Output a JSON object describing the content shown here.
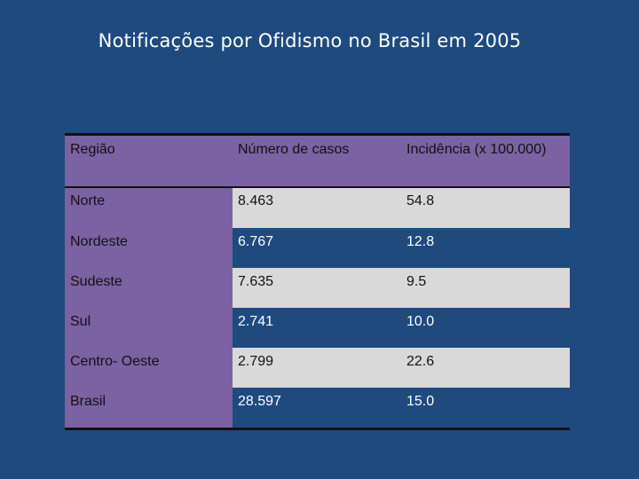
{
  "slide": {
    "title": "Notificações por Ofidismo no Brasil em 2005"
  },
  "table": {
    "headers": [
      "Região",
      "Número de casos",
      "Incidência (x 100.000)"
    ],
    "rows": [
      [
        "Norte",
        "8.463",
        "54.8"
      ],
      [
        "Nordeste",
        "6.767",
        "12.8"
      ],
      [
        "Sudeste",
        "7.635",
        "9.5"
      ],
      [
        "Sul",
        "2.741",
        "10.0"
      ],
      [
        "Centro- Oeste",
        "2.799",
        "22.6"
      ],
      [
        "Brasil",
        "28.597",
        "15.0"
      ]
    ]
  },
  "colors": {
    "background": "#1f4a7e",
    "header": "#7b62a3",
    "row_light": "#d9d9d9"
  }
}
